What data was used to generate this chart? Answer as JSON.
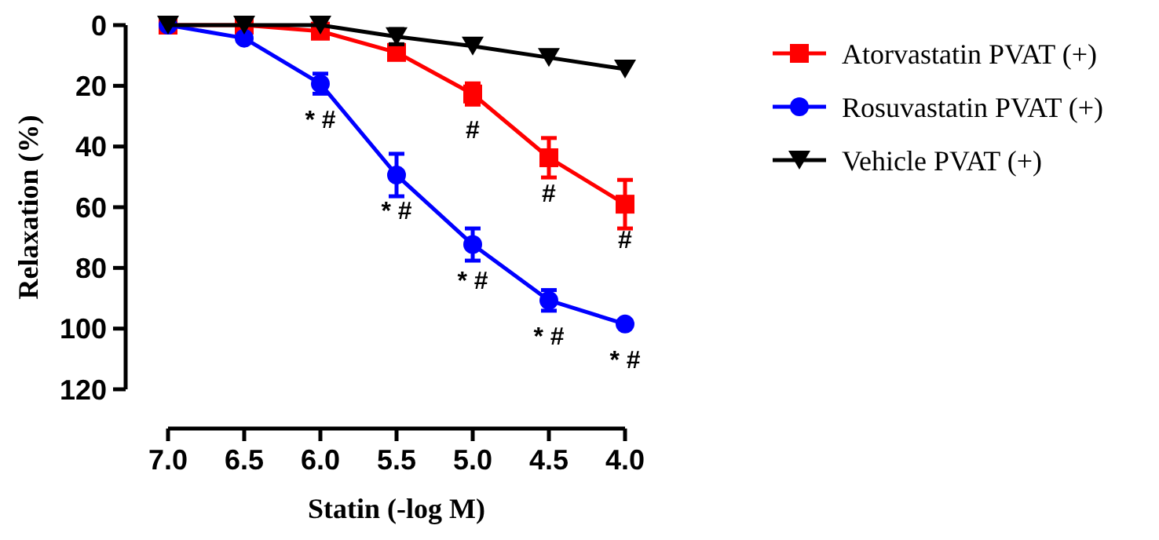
{
  "chart_data": {
    "type": "line",
    "xlabel": "Statin (-log M)",
    "ylabel": "Relaxation (%)",
    "x": [
      7.0,
      6.5,
      6.0,
      5.5,
      5.0,
      4.5,
      4.0
    ],
    "xlim": [
      7.0,
      4.0
    ],
    "xticks": [
      {
        "value": 7,
        "label": "7.0"
      },
      {
        "value": 6.5,
        "label": "6.5"
      },
      {
        "value": 6,
        "label": "6.0"
      },
      {
        "value": 5.5,
        "label": "5.5"
      },
      {
        "value": 5,
        "label": "5.0"
      },
      {
        "value": 4.5,
        "label": "4.5"
      },
      {
        "value": 4,
        "label": "4.0"
      }
    ],
    "ylim": [
      120,
      0
    ],
    "yticks": [
      0,
      20,
      40,
      60,
      80,
      100,
      120
    ],
    "series": [
      {
        "name": "Atorvastatin PVAT (+)",
        "color": "#ff0000",
        "marker": "square",
        "values": [
          0,
          0,
          2,
          9,
          22.7,
          43.7,
          59
        ],
        "errors": [
          null,
          null,
          null,
          null,
          3.5,
          6.5,
          8
        ]
      },
      {
        "name": "Rosuvastatin PVAT (+)",
        "color": "#0000ff",
        "marker": "circle",
        "values": [
          0,
          4.3,
          19.3,
          49.4,
          72.3,
          90.7,
          98.5
        ],
        "errors": [
          null,
          null,
          3.3,
          7,
          5.3,
          3.4,
          null
        ]
      },
      {
        "name": "Vehicle PVAT (+)",
        "color": "#000000",
        "marker": "triangle",
        "values": [
          0,
          0,
          0,
          3.8,
          6.9,
          10.7,
          14.5
        ],
        "errors": [
          null,
          null,
          null,
          2.5,
          null,
          null,
          null
        ]
      }
    ],
    "annotations": [
      {
        "text": "* #",
        "x": 6.0,
        "y": 19.3
      },
      {
        "text": "* #",
        "x": 5.5,
        "y": 49.4
      },
      {
        "text": "* #",
        "x": 5.0,
        "y": 72.3
      },
      {
        "text": "* #",
        "x": 4.5,
        "y": 90.7
      },
      {
        "text": "* #",
        "x": 4.0,
        "y": 98.5
      },
      {
        "text": "#",
        "x": 5.0,
        "y": 22.7
      },
      {
        "text": "#",
        "x": 4.5,
        "y": 43.7
      },
      {
        "text": "#",
        "x": 4.0,
        "y": 59
      }
    ],
    "legend": "right",
    "line_style": "solid",
    "grid": false
  }
}
